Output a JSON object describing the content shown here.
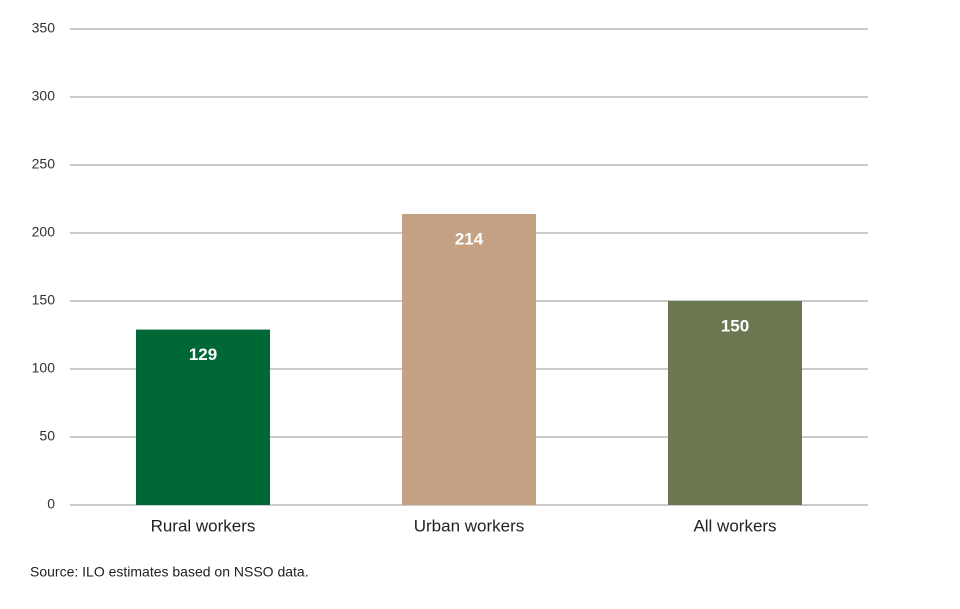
{
  "chart_data": {
    "type": "bar",
    "categories": [
      "Rural workers",
      "Urban workers",
      "All workers"
    ],
    "values": [
      129,
      214,
      150
    ],
    "colors": [
      "#006837",
      "#c4a182",
      "#6b7751"
    ],
    "ylim": [
      0,
      350
    ],
    "yticks": [
      0,
      50,
      100,
      150,
      200,
      250,
      300,
      350
    ],
    "grid": true,
    "source": "Source: ILO estimates based on NSSO data."
  }
}
